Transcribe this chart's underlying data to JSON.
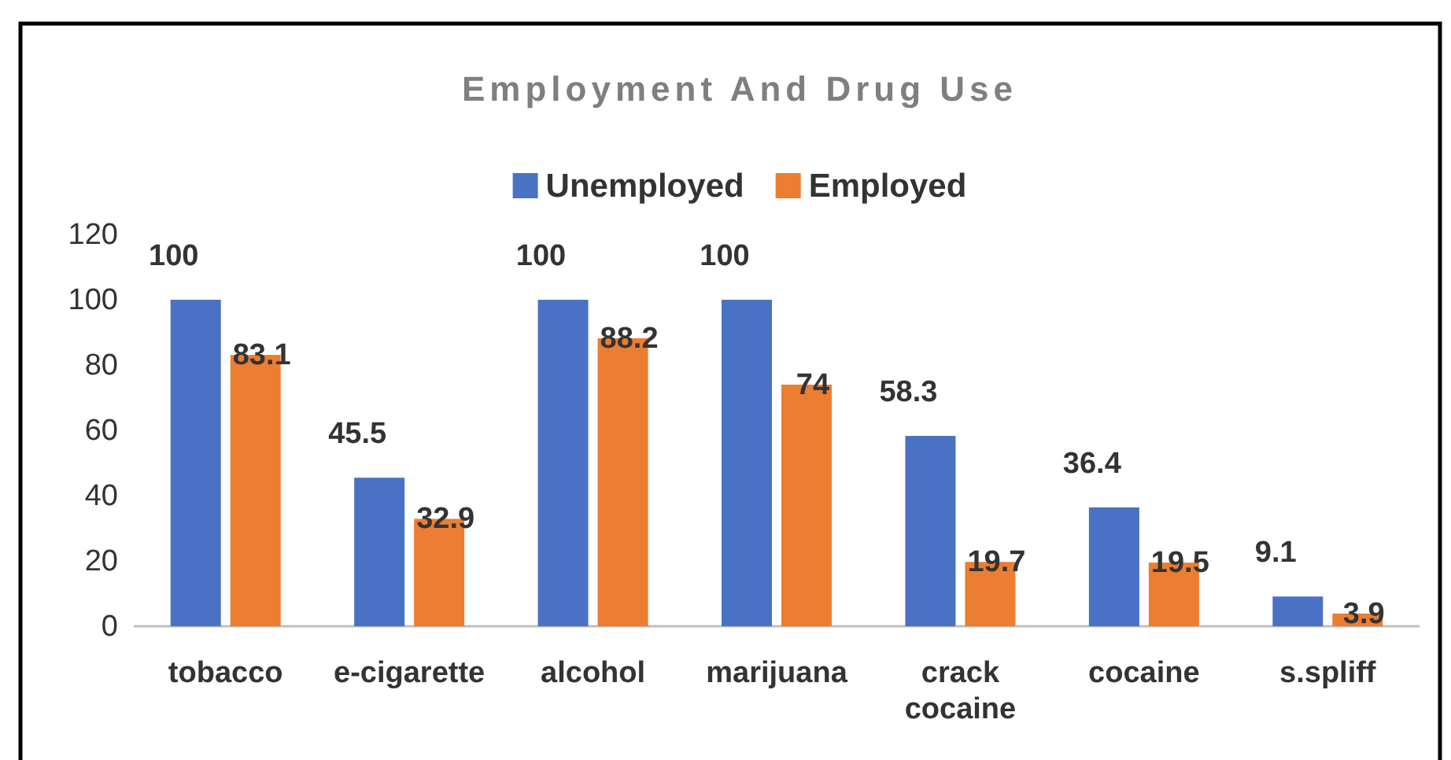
{
  "chart_data": {
    "type": "bar",
    "title": "Employment And Drug Use",
    "categories": [
      "tobacco",
      "e-cigarette",
      "alcohol",
      "marijuana",
      "crack cocaine",
      "cocaine",
      "s.spliff"
    ],
    "series": [
      {
        "name": "Unemployed",
        "color": "#4a72c4",
        "values": [
          100,
          45.5,
          100,
          100,
          58.3,
          36.4,
          9.1
        ]
      },
      {
        "name": "Employed",
        "color": "#ed7d31",
        "values": [
          83.1,
          32.9,
          88.2,
          74,
          19.7,
          19.5,
          3.9
        ]
      }
    ],
    "ylim": [
      0,
      120
    ],
    "yticks": [
      0,
      20,
      40,
      60,
      80,
      100,
      120
    ],
    "data_labels": true,
    "legend": "top",
    "grid": false
  }
}
